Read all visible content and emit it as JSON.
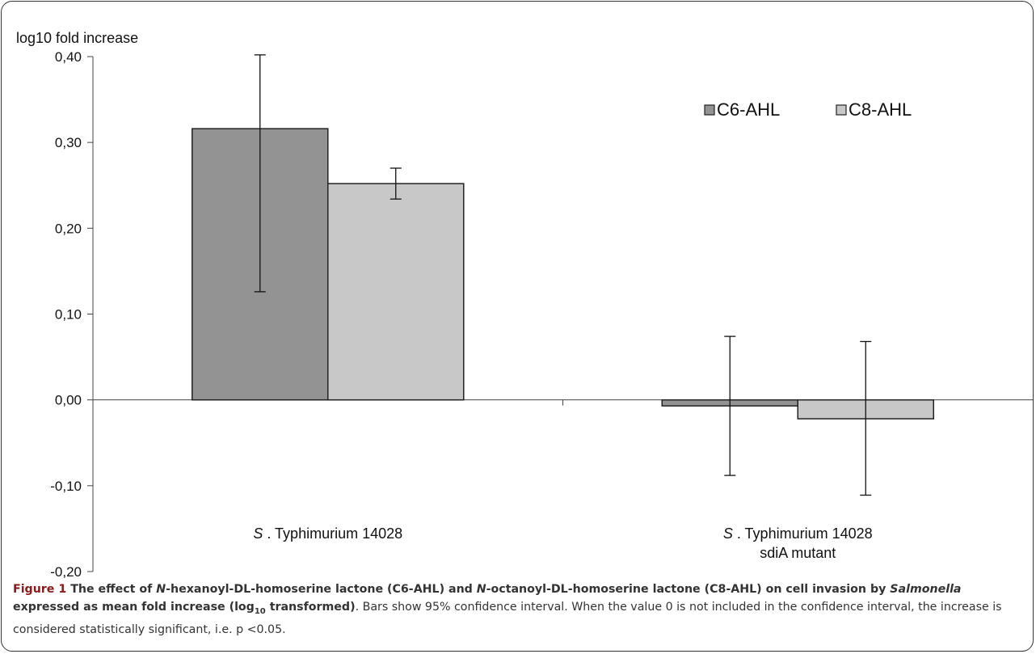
{
  "chart_data": {
    "type": "bar",
    "ylabel": "log10 fold increase",
    "ylim": [
      -0.2,
      0.4
    ],
    "yticks": [
      "0,40",
      "0,30",
      "0,20",
      "0,10",
      "0,00",
      "-0,10",
      "-0,20"
    ],
    "ytick_values": [
      0.4,
      0.3,
      0.2,
      0.1,
      0.0,
      -0.1,
      -0.2
    ],
    "categories": [
      {
        "lines": [
          "S . Typhimurium 14028"
        ],
        "italic_prefix": "S"
      },
      {
        "lines": [
          "S . Typhimurium 14028",
          "sdiA mutant"
        ],
        "italic_prefix": "S"
      }
    ],
    "legend_position": "top-right",
    "series": [
      {
        "name": "C6-AHL",
        "color": "#939393",
        "values": [
          0.316,
          -0.007
        ],
        "ci_low": [
          0.126,
          -0.088
        ],
        "ci_high": [
          0.402,
          0.074
        ]
      },
      {
        "name": "C8-AHL",
        "color": "#c8c8c8",
        "values": [
          0.252,
          -0.022
        ],
        "ci_low": [
          0.234,
          -0.111
        ],
        "ci_high": [
          0.27,
          0.068
        ]
      }
    ]
  },
  "caption": {
    "figure_label": "Figure 1",
    "title_parts": [
      {
        "text": " The effect of ",
        "style": "b"
      },
      {
        "text": "N",
        "style": "bi"
      },
      {
        "text": "-hexanoyl-DL-homoserine lactone (C6-AHL) and ",
        "style": "b"
      },
      {
        "text": "N",
        "style": "bi"
      },
      {
        "text": "-octanoyl-DL-homoserine lactone (C8-AHL) on cell invasion by ",
        "style": "b"
      },
      {
        "text": "Salmonella",
        "style": "bi"
      },
      {
        "text": " expressed as mean fold increase (log",
        "style": "b"
      },
      {
        "text": "10",
        "style": "bsub"
      },
      {
        "text": " transformed)",
        "style": "b"
      }
    ],
    "body": ". Bars show 95% confidence interval. When the value 0 is not included in the confidence interval, the increase is considered statistically significant, i.e. p <0.05."
  }
}
